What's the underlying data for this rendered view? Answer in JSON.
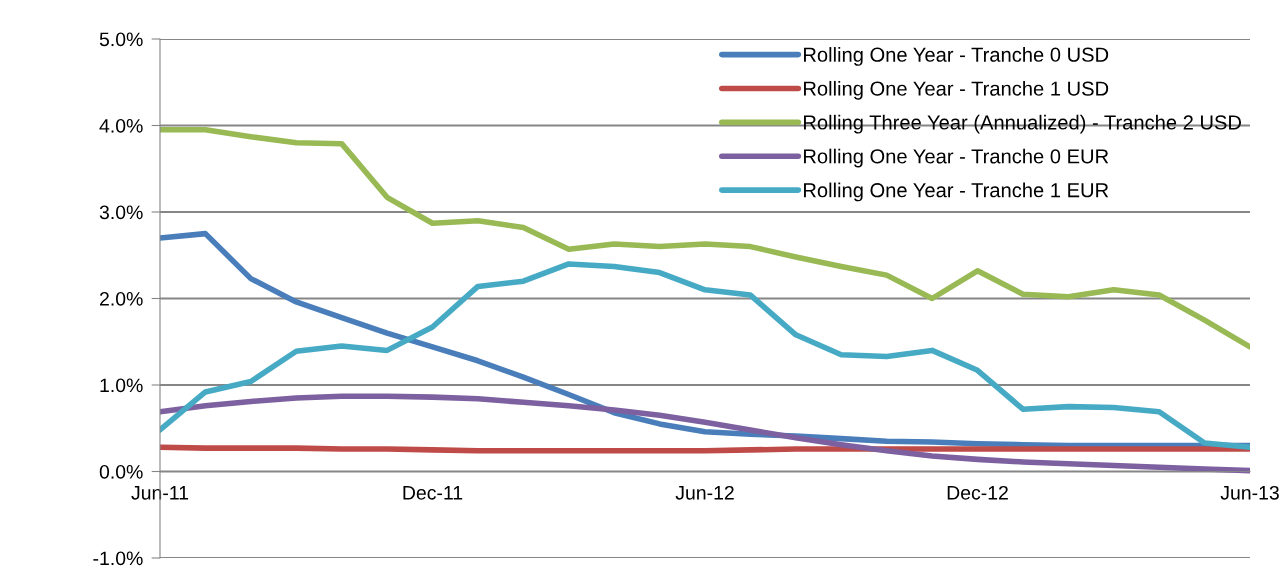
{
  "chart_data": {
    "type": "line",
    "categories": [
      "Jun-11",
      null,
      null,
      null,
      null,
      null,
      "Dec-11",
      null,
      null,
      null,
      null,
      null,
      "Jun-12",
      null,
      null,
      null,
      null,
      null,
      "Dec-12",
      null,
      null,
      null,
      null,
      null,
      "Jun-13"
    ],
    "series": [
      {
        "name": "Rolling One Year - Tranche 0 USD",
        "color": "#4a7ebb",
        "values": [
          2.7,
          2.75,
          2.23,
          1.96,
          1.78,
          1.6,
          1.44,
          1.28,
          1.09,
          0.89,
          0.68,
          0.55,
          0.46,
          0.43,
          0.41,
          0.38,
          0.35,
          0.34,
          0.32,
          0.31,
          0.3,
          0.3,
          0.3,
          0.3,
          0.3
        ]
      },
      {
        "name": "Rolling One Year - Tranche 1 USD",
        "color": "#be4b48",
        "values": [
          0.28,
          0.27,
          0.27,
          0.27,
          0.26,
          0.26,
          0.25,
          0.24,
          0.24,
          0.24,
          0.24,
          0.24,
          0.24,
          0.25,
          0.26,
          0.26,
          0.26,
          0.26,
          0.26,
          0.26,
          0.26,
          0.26,
          0.26,
          0.26,
          0.26
        ]
      },
      {
        "name": "Rolling Three Year (Annualized) - Tranche 2 USD",
        "color": "#98b954",
        "values": [
          3.95,
          3.95,
          3.87,
          3.8,
          3.79,
          3.17,
          2.87,
          2.9,
          2.82,
          2.57,
          2.63,
          2.6,
          2.63,
          2.6,
          2.48,
          2.37,
          2.27,
          2.0,
          2.32,
          2.05,
          2.02,
          2.1,
          2.04,
          1.75,
          1.44
        ]
      },
      {
        "name": "Rolling One Year - Tranche 0 EUR",
        "color": "#7d60a0",
        "values": [
          0.69,
          0.76,
          0.81,
          0.85,
          0.87,
          0.87,
          0.86,
          0.84,
          0.8,
          0.76,
          0.71,
          0.65,
          0.57,
          0.48,
          0.39,
          0.31,
          0.24,
          0.18,
          0.14,
          0.11,
          0.09,
          0.07,
          0.05,
          0.03,
          0.01
        ]
      },
      {
        "name": "Rolling One Year - Tranche 1 EUR",
        "color": "#46aac5",
        "values": [
          0.48,
          0.92,
          1.04,
          1.39,
          1.45,
          1.4,
          1.67,
          2.14,
          2.2,
          2.4,
          2.37,
          2.3,
          2.1,
          2.04,
          1.58,
          1.35,
          1.33,
          1.4,
          1.17,
          0.72,
          0.75,
          0.74,
          0.69,
          0.33,
          0.28
        ]
      }
    ],
    "ylim": [
      -1,
      5
    ],
    "yticks": [
      {
        "value": -1,
        "label": "-1.0%"
      },
      {
        "value": 0,
        "label": "0.0%"
      },
      {
        "value": 1,
        "label": "1.0%"
      },
      {
        "value": 2,
        "label": "2.0%"
      },
      {
        "value": 3,
        "label": "3.0%"
      },
      {
        "value": 4,
        "label": "4.0%"
      },
      {
        "value": 5,
        "label": "5.0%"
      }
    ],
    "grid": "y",
    "legend": "top right",
    "marker": "none",
    "line_style": "solid"
  }
}
